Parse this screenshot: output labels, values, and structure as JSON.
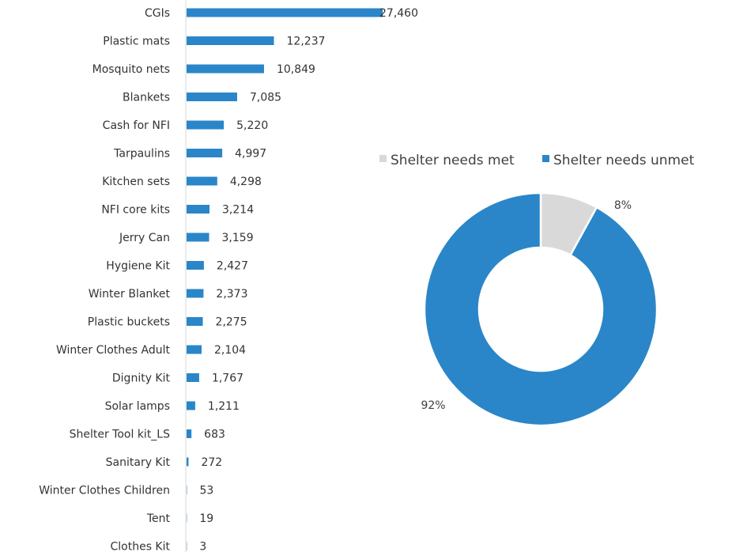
{
  "chart_data": [
    {
      "type": "bar",
      "orientation": "horizontal",
      "categories": [
        "CGIs",
        "Plastic mats",
        "Mosquito nets",
        "Blankets",
        "Cash for NFI",
        "Tarpaulins",
        "Kitchen sets",
        "NFI core kits",
        "Jerry Can",
        "Hygiene Kit",
        "Winter Blanket",
        "Plastic buckets",
        "Winter Clothes Adult",
        "Dignity Kit",
        "Solar lamps",
        "Shelter Tool kit_LS",
        "Sanitary Kit",
        "Winter Clothes Children",
        "Tent",
        "Clothes Kit"
      ],
      "values": [
        27460,
        12237,
        10849,
        7085,
        5220,
        4997,
        4298,
        3214,
        3159,
        2427,
        2373,
        2275,
        2104,
        1767,
        1211,
        683,
        272,
        53,
        19,
        3
      ],
      "value_labels": [
        "27,460",
        "12,237",
        "10,849",
        "7,085",
        "5,220",
        "4,997",
        "4,298",
        "3,214",
        "3,159",
        "2,427",
        "2,373",
        "2,275",
        "2,104",
        "1,767",
        "1,211",
        "683",
        "272",
        "53",
        "19",
        "3"
      ],
      "xlim": [
        0,
        27460
      ],
      "color": "#2a86c8",
      "grid": false
    },
    {
      "type": "pie",
      "style": "donut",
      "legend": "top",
      "slices": [
        {
          "name": "Shelter needs met",
          "value": 8,
          "label": "8%",
          "color": "#d9d9d9"
        },
        {
          "name": "Shelter needs unmet",
          "value": 92,
          "label": "92%",
          "color": "#2a86c8"
        }
      ]
    }
  ]
}
